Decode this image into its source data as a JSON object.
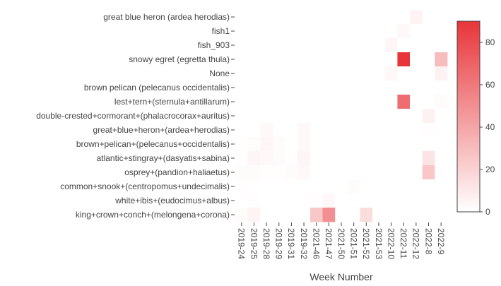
{
  "chart_data": {
    "type": "heatmap",
    "title": "",
    "xlabel": "Week Number",
    "ylabel": "",
    "x": [
      "2019-24",
      "2019-25",
      "2019-28",
      "2019-29",
      "2019-31",
      "2019-32",
      "2021-46",
      "2021-47",
      "2021-50",
      "2021-51",
      "2021-52",
      "2021-53",
      "2022-10",
      "2022-11",
      "2022-12",
      "2022-8",
      "2022-9"
    ],
    "y": [
      "great blue heron (ardea herodias)",
      "fish1",
      "fish_903",
      "snowy egret (egretta thula)",
      "None",
      "brown pelican (pelecanus occidentalis)",
      "lest+tern+(sternula+antillarum)",
      "double-crested+cormorant+(phalacrocorax+auritus)",
      "great+blue+heron+(ardea+herodias)",
      "brown+pelican+(pelecanus+occidentalis)",
      "atlantic+stingray+(dasyatis+sabina)",
      "osprey+(pandion+haliaetus)",
      "common+snook+(centropomus+undecimalis)",
      "white+ibis+(eudocimus+albus)",
      "king+crown+conch+(melongena+corona)"
    ],
    "z": [
      [
        0,
        0,
        0,
        0,
        0,
        0,
        0,
        0,
        0,
        0,
        0,
        0,
        0,
        0,
        5,
        0,
        0
      ],
      [
        0,
        0,
        0,
        0,
        0,
        0,
        0,
        0,
        0,
        0,
        0,
        0,
        0,
        3,
        0,
        0,
        0
      ],
      [
        0,
        0,
        0,
        0,
        0,
        0,
        0,
        0,
        0,
        0,
        0,
        0,
        4,
        0,
        0,
        0,
        0
      ],
      [
        0,
        0,
        0,
        0,
        0,
        0,
        0,
        0,
        0,
        0,
        0,
        0,
        0,
        90,
        0,
        0,
        30
      ],
      [
        0,
        0,
        0,
        0,
        0,
        0,
        0,
        0,
        0,
        0,
        0,
        0,
        3,
        0,
        0,
        0,
        6
      ],
      [
        0,
        0,
        0,
        0,
        0,
        0,
        0,
        0,
        0,
        0,
        0,
        0,
        0,
        0,
        0,
        0,
        0
      ],
      [
        0,
        0,
        0,
        0,
        0,
        0,
        0,
        0,
        0,
        0,
        0,
        0,
        0,
        65,
        0,
        0,
        2
      ],
      [
        0,
        0,
        0,
        0,
        0,
        0,
        0,
        0,
        0,
        0,
        0,
        0,
        0,
        0,
        0,
        6,
        0
      ],
      [
        0,
        0,
        3,
        0,
        0,
        3,
        0,
        0,
        0,
        0,
        0,
        0,
        0,
        0,
        0,
        1,
        0
      ],
      [
        1,
        2,
        4,
        2,
        0,
        3,
        0,
        0,
        0,
        0,
        0,
        0,
        0,
        0,
        0,
        0,
        0
      ],
      [
        1,
        4,
        3,
        2,
        1,
        4,
        0,
        0,
        0,
        0,
        0,
        0,
        0,
        0,
        0,
        12,
        0
      ],
      [
        2,
        2,
        1,
        1,
        2,
        3,
        0,
        0,
        0,
        0,
        0,
        0,
        0,
        0,
        0,
        25,
        0
      ],
      [
        1,
        0,
        0,
        0,
        0,
        0,
        0,
        0,
        0,
        2,
        0,
        0,
        0,
        0,
        0,
        0,
        0
      ],
      [
        0,
        1,
        0,
        0,
        0,
        0,
        1,
        3,
        0,
        0,
        0,
        0,
        0,
        0,
        0,
        0,
        0
      ],
      [
        2,
        5,
        0,
        0,
        0,
        0,
        25,
        50,
        0,
        0,
        15,
        0,
        0,
        0,
        0,
        0,
        0
      ]
    ],
    "zlim": [
      0,
      90
    ],
    "colorscale": [
      "#ffffff",
      "#e8353a"
    ],
    "colorbar_ticks": [
      0,
      20,
      40,
      60,
      80
    ],
    "colorbar_tick_labels": [
      "0",
      "20",
      "40",
      "60",
      "80"
    ],
    "grid": false
  }
}
